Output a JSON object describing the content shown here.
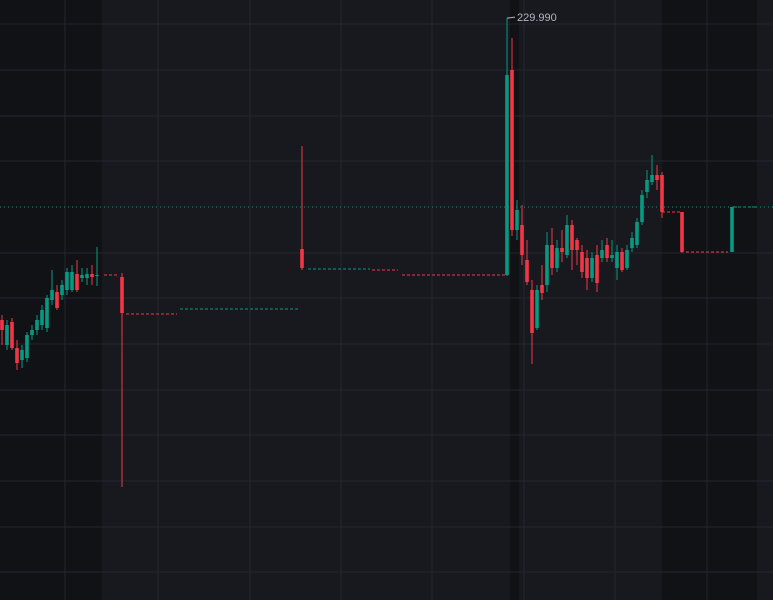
{
  "chart_data": {
    "type": "candlestick",
    "up_color": "#089981",
    "down_color": "#f23645",
    "xlim": [
      -0.4,
      154.2
    ],
    "ylim": [
      171.8,
      231.8
    ],
    "x": [
      0,
      1,
      2,
      3,
      4,
      5,
      6,
      7,
      8,
      9,
      10,
      11,
      12,
      13,
      14,
      15,
      16,
      17,
      18,
      19,
      24,
      60,
      101,
      102,
      103,
      104,
      105,
      106,
      107,
      108,
      109,
      110,
      111,
      112,
      113,
      114,
      115,
      116,
      117,
      118,
      119,
      120,
      121,
      122,
      123,
      124,
      125,
      126,
      127,
      128,
      129,
      130,
      131,
      132,
      136,
      146
    ],
    "open": [
      199.8,
      197.3,
      199.6,
      197.0,
      195.8,
      196.0,
      198.3,
      198.8,
      199.3,
      199.0,
      201.8,
      202.6,
      202.3,
      202.8,
      202.8,
      204.4,
      204.0,
      204.0,
      204.4,
      204.2,
      204.1,
      206.9,
      204.3,
      224.8,
      208.8,
      209.3,
      205.8,
      202.8,
      199.0,
      203.3,
      203.3,
      207.3,
      205.0,
      207.0,
      206.3,
      209.3,
      207.8,
      206.6,
      206.0,
      204.0,
      206.3,
      206.0,
      207.3,
      206.0,
      205.0,
      206.6,
      205.0,
      207.0,
      207.3,
      209.6,
      212.6,
      213.6,
      214.3,
      214.3,
      210.6,
      206.6
    ],
    "high": [
      200.3,
      199.8,
      200.0,
      197.8,
      197.3,
      198.6,
      199.3,
      200.3,
      201.3,
      202.3,
      204.8,
      203.3,
      203.8,
      205.0,
      205.3,
      205.8,
      205.0,
      205.0,
      205.3,
      207.1,
      204.5,
      217.2,
      229.99,
      228.0,
      211.8,
      211.3,
      207.8,
      203.8,
      203.3,
      205.3,
      208.6,
      209.0,
      207.8,
      208.8,
      210.3,
      209.8,
      208.0,
      207.3,
      206.8,
      206.6,
      207.3,
      207.8,
      208.0,
      207.8,
      207.3,
      207.0,
      207.3,
      208.6,
      210.0,
      212.8,
      214.8,
      216.3,
      215.3,
      214.6,
      210.6,
      211.1
    ],
    "low": [
      197.3,
      196.8,
      196.8,
      194.8,
      195.0,
      195.6,
      197.8,
      198.3,
      198.8,
      198.6,
      201.3,
      200.8,
      201.8,
      202.3,
      202.6,
      202.6,
      203.6,
      203.3,
      203.3,
      203.2,
      183.1,
      204.8,
      204.2,
      208.2,
      207.8,
      205.3,
      203.3,
      195.4,
      198.8,
      201.8,
      202.6,
      204.3,
      204.6,
      205.6,
      206.0,
      204.8,
      205.3,
      204.0,
      202.8,
      203.6,
      202.6,
      205.6,
      205.6,
      205.6,
      203.8,
      204.6,
      204.8,
      206.6,
      207.0,
      209.3,
      212.0,
      213.3,
      212.8,
      210.0,
      206.5,
      206.6
    ],
    "close": [
      198.8,
      199.3,
      197.0,
      195.5,
      196.8,
      198.3,
      198.8,
      199.8,
      200.8,
      202.0,
      202.8,
      201.0,
      203.3,
      204.6,
      204.6,
      202.8,
      204.3,
      204.4,
      204.1,
      204.3,
      200.5,
      205.0,
      224.3,
      208.8,
      210.8,
      206.3,
      203.6,
      198.5,
      202.8,
      202.5,
      207.3,
      205.0,
      207.0,
      206.6,
      209.3,
      206.8,
      206.8,
      204.6,
      204.0,
      206.0,
      203.5,
      206.8,
      206.0,
      206.3,
      206.6,
      204.8,
      206.8,
      208.0,
      209.6,
      212.3,
      213.8,
      214.3,
      213.8,
      210.6,
      206.6,
      211.1
    ],
    "segments": [
      {
        "from": 20.4,
        "to": 23.4,
        "value": 204.3,
        "color": "#f23645"
      },
      {
        "from": 24.8,
        "to": 35,
        "value": 200.4,
        "color": "#f23645"
      },
      {
        "from": 35.6,
        "to": 59.6,
        "value": 200.9,
        "color": "#089981"
      },
      {
        "from": 61.2,
        "to": 73.6,
        "value": 204.9,
        "color": "#089981"
      },
      {
        "from": 74,
        "to": 79.2,
        "value": 204.8,
        "color": "#f23645"
      },
      {
        "from": 80,
        "to": 100.6,
        "value": 204.3,
        "color": "#f23645"
      },
      {
        "from": 132,
        "to": 135.6,
        "value": 210.6,
        "color": "#f23645"
      },
      {
        "from": 136.8,
        "to": 145.2,
        "value": 206.6,
        "color": "#f23645"
      },
      {
        "from": 146.2,
        "to": 151,
        "value": 211.1,
        "color": "#089981"
      }
    ],
    "last_price": 211.1,
    "last_price_color": "#089981",
    "annotations": [
      {
        "x": 101,
        "value": 229.99,
        "label": "229.990"
      }
    ]
  }
}
